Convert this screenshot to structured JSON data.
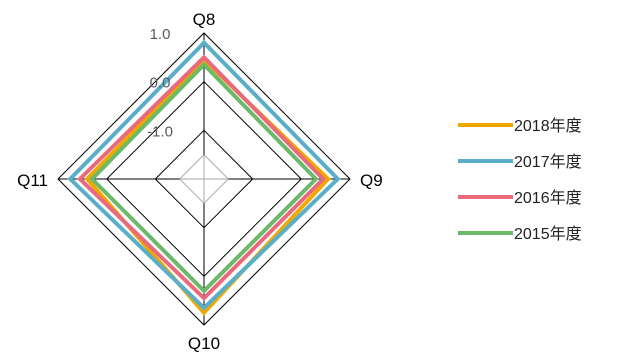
{
  "chart_data": {
    "type": "radar",
    "title": "",
    "axes": [
      "Q8",
      "Q9",
      "Q10",
      "Q11"
    ],
    "rlim": [
      -2.0,
      1.0
    ],
    "ticks": [
      "1.0",
      "0.0",
      "-1.0"
    ],
    "tick_values": [
      1.0,
      0.0,
      -1.0
    ],
    "grid": true,
    "legend_position": "right",
    "series": [
      {
        "name": "2018年度",
        "color": "#f0a800",
        "values": [
          0.45,
          0.55,
          0.75,
          0.4
        ]
      },
      {
        "name": "2017年度",
        "color": "#5aaec9",
        "values": [
          0.8,
          0.75,
          0.65,
          0.75
        ]
      },
      {
        "name": "2016年度",
        "color": "#e86a7c",
        "values": [
          0.5,
          0.45,
          0.45,
          0.55
        ]
      },
      {
        "name": "2015年度",
        "color": "#6cb96a",
        "values": [
          0.35,
          0.3,
          0.3,
          0.3
        ]
      }
    ]
  }
}
